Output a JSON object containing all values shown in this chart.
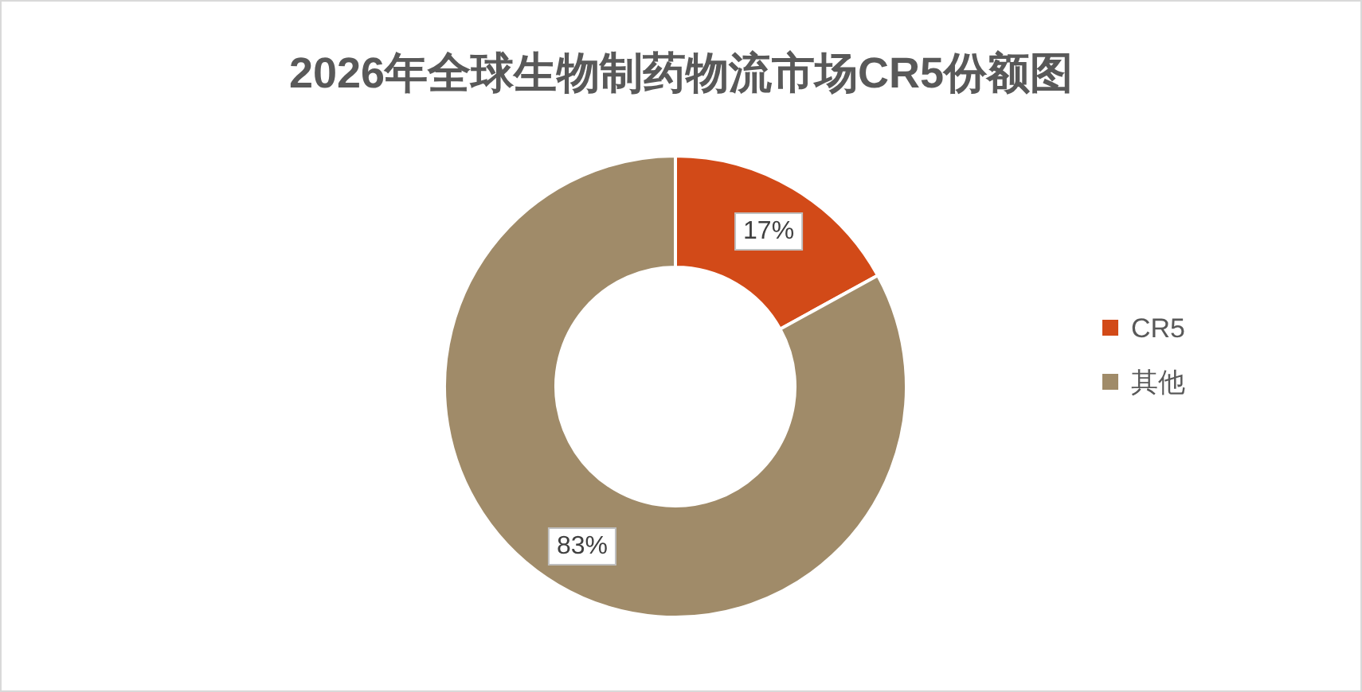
{
  "chart_data": {
    "type": "donut",
    "title": "2026年全球生物制药物流市场CR5份额图",
    "categories": [
      "CR5",
      "其他"
    ],
    "values": [
      17,
      83
    ],
    "colors": [
      "#d24a18",
      "#a08b69"
    ],
    "value_labels": [
      "17%",
      "83%"
    ],
    "legend": "right"
  }
}
